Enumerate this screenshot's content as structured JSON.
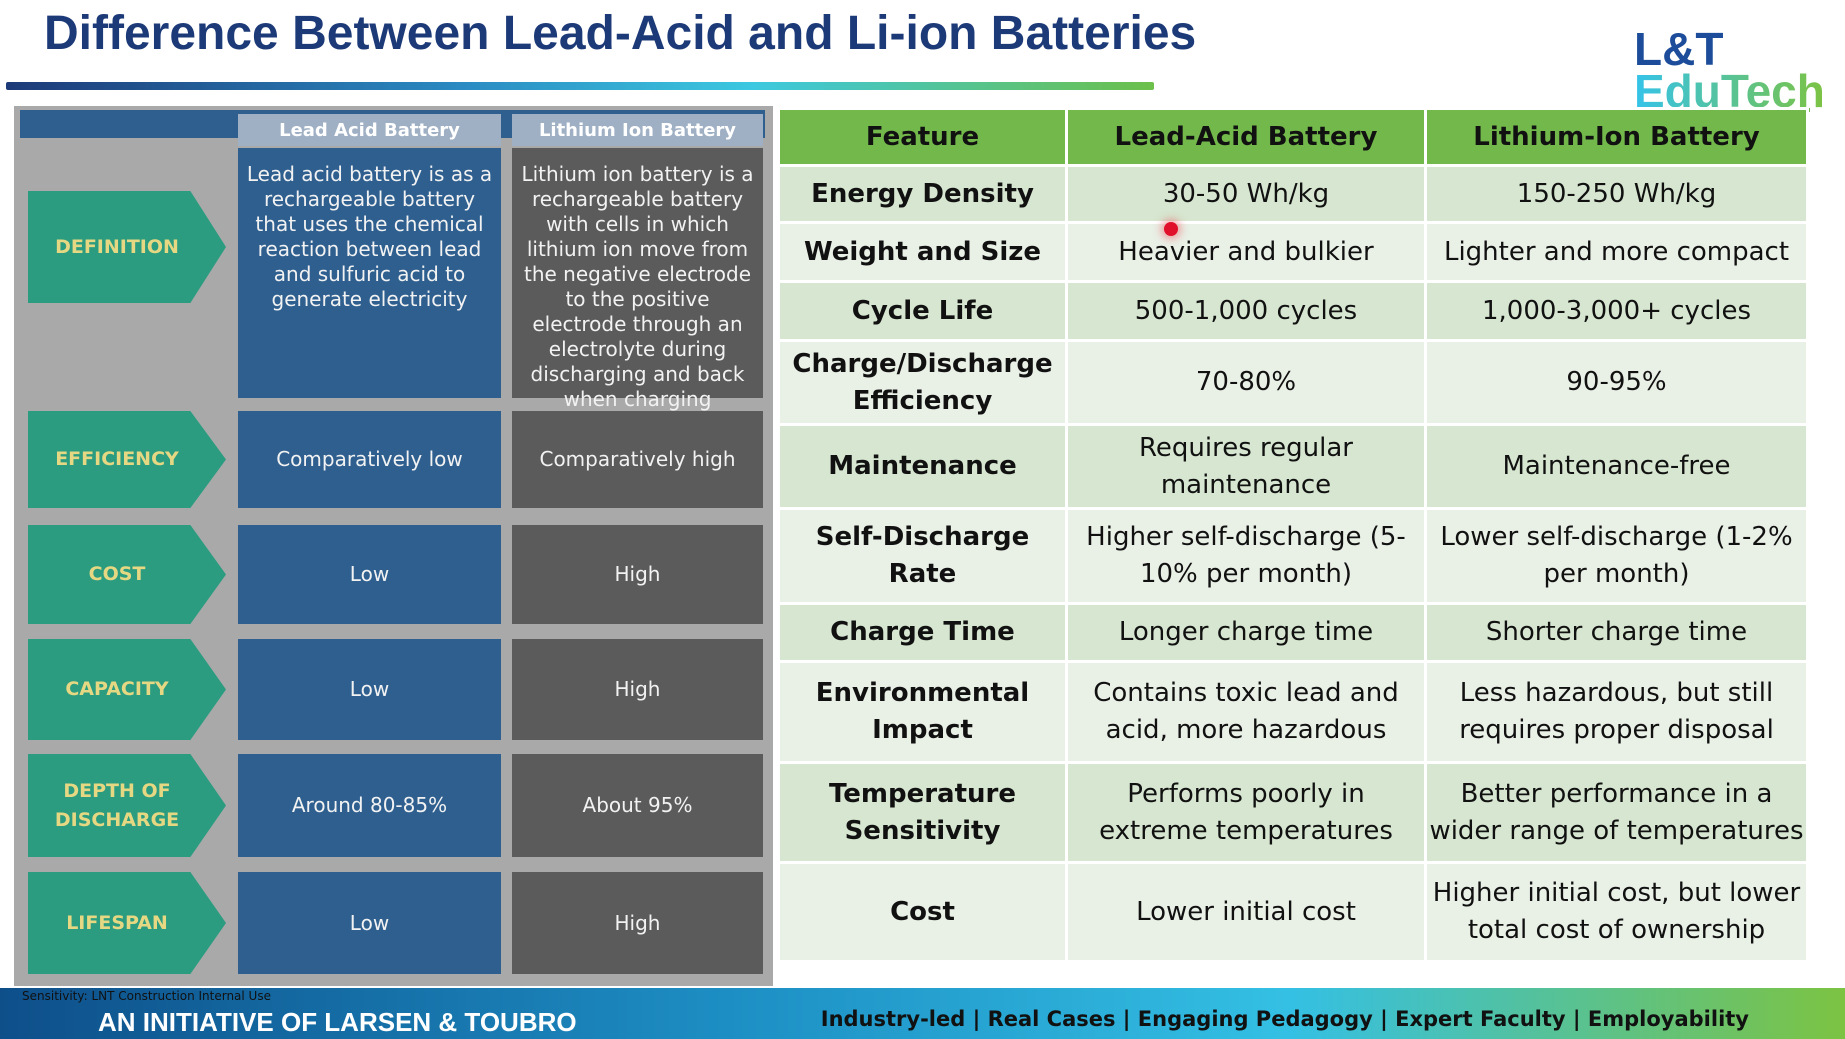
{
  "title": "Difference Between Lead-Acid and Li-ion Batteries",
  "logo": {
    "line1": "L&T",
    "line2": "EduTech"
  },
  "infographic": {
    "headers": [
      "Lead Acid Battery",
      "Lithium Ion Battery"
    ],
    "rows": [
      {
        "label": "DEFINITION",
        "lead": "Lead acid battery is as a rechargeable battery that uses the chemical reaction between lead and sulfuric acid to generate electricity",
        "li": "Lithium ion battery is a rechargeable battery with cells in which lithium ion move from the negative electrode to the positive electrode through an electrolyte during discharging and back when charging"
      },
      {
        "label": "EFFICIENCY",
        "lead": "Comparatively low",
        "li": "Comparatively high"
      },
      {
        "label": "COST",
        "lead": "Low",
        "li": "High"
      },
      {
        "label": "CAPACITY",
        "lead": "Low",
        "li": "High"
      },
      {
        "label": "DEPTH OF DISCHARGE",
        "lead": "Around 80-85%",
        "li": "About 95%"
      },
      {
        "label": "LIFESPAN",
        "lead": "Low",
        "li": "High"
      }
    ]
  },
  "table": {
    "headers": [
      "Feature",
      "Lead-Acid Battery",
      "Lithium-Ion Battery"
    ],
    "rows": [
      [
        "Energy Density",
        "30-50 Wh/kg",
        "150-250 Wh/kg"
      ],
      [
        "Weight and Size",
        "Heavier and bulkier",
        "Lighter and more compact"
      ],
      [
        "Cycle Life",
        "500-1,000 cycles",
        "1,000-3,000+ cycles"
      ],
      [
        "Charge/Discharge Efficiency",
        "70-80%",
        "90-95%"
      ],
      [
        "Maintenance",
        "Requires regular maintenance",
        "Maintenance-free"
      ],
      [
        "Self-Discharge Rate",
        "Higher self-discharge (5-10% per month)",
        "Lower self-discharge (1-2% per month)"
      ],
      [
        "Charge Time",
        "Longer charge time",
        "Shorter charge time"
      ],
      [
        "Environmental Impact",
        "Contains toxic lead and acid, more hazardous",
        "Less hazardous, but still requires proper disposal"
      ],
      [
        "Temperature Sensitivity",
        "Performs poorly in extreme temperatures",
        "Better performance in a wider range of temperatures"
      ],
      [
        "Cost",
        "Lower initial cost",
        "Higher initial cost, but lower total cost of ownership"
      ]
    ]
  },
  "footer": {
    "left": "AN INITIATIVE OF LARSEN & TOUBRO",
    "sensitivity": "Sensitivity: LNT Construction Internal Use",
    "right": "Industry-led | Real Cases | Engaging Pedagogy | Expert Faculty | Employability"
  }
}
